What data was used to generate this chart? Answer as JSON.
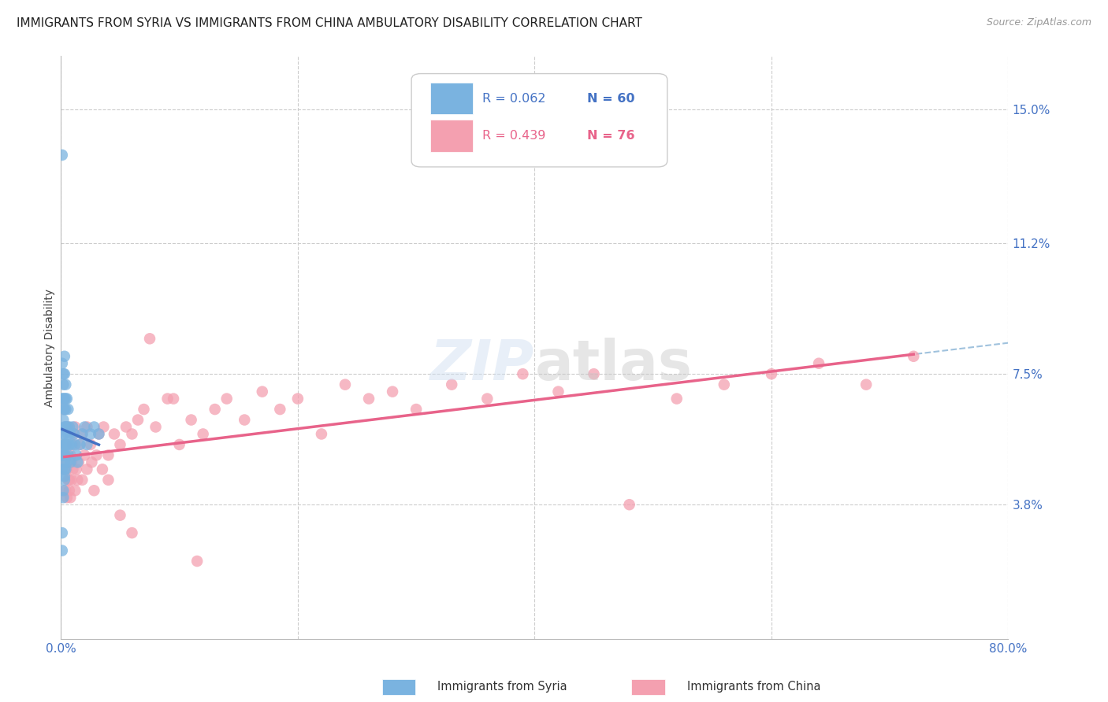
{
  "title": "IMMIGRANTS FROM SYRIA VS IMMIGRANTS FROM CHINA AMBULATORY DISABILITY CORRELATION CHART",
  "source": "Source: ZipAtlas.com",
  "ylabel": "Ambulatory Disability",
  "xlim": [
    0.0,
    0.8
  ],
  "ylim": [
    0.0,
    0.165
  ],
  "ytick_labels_right": [
    "15.0%",
    "11.2%",
    "7.5%",
    "3.8%"
  ],
  "ytick_vals_right": [
    0.15,
    0.112,
    0.075,
    0.038
  ],
  "grid_color": "#cccccc",
  "background_color": "#ffffff",
  "syria_color": "#7ab3e0",
  "china_color": "#f4a0b0",
  "syria_line_color": "#4472c4",
  "china_line_color": "#e8638a",
  "dashed_line_color": "#90b8d8",
  "title_fontsize": 11,
  "label_fontsize": 10,
  "tick_fontsize": 11,
  "legend_R_syria": "R = 0.062",
  "legend_N_syria": "N = 60",
  "legend_R_china": "R = 0.439",
  "legend_N_china": "N = 76",
  "syria_x": [
    0.001,
    0.001,
    0.001,
    0.001,
    0.001,
    0.002,
    0.002,
    0.002,
    0.002,
    0.002,
    0.002,
    0.002,
    0.002,
    0.003,
    0.003,
    0.003,
    0.003,
    0.003,
    0.003,
    0.003,
    0.003,
    0.003,
    0.003,
    0.003,
    0.004,
    0.004,
    0.004,
    0.004,
    0.004,
    0.004,
    0.004,
    0.005,
    0.005,
    0.005,
    0.005,
    0.006,
    0.006,
    0.006,
    0.007,
    0.007,
    0.008,
    0.008,
    0.009,
    0.01,
    0.011,
    0.012,
    0.013,
    0.014,
    0.016,
    0.018,
    0.02,
    0.022,
    0.025,
    0.028,
    0.032,
    0.001,
    0.001,
    0.002,
    0.002,
    0.003
  ],
  "syria_y": [
    0.137,
    0.078,
    0.068,
    0.052,
    0.048,
    0.075,
    0.072,
    0.068,
    0.065,
    0.062,
    0.058,
    0.055,
    0.052,
    0.08,
    0.075,
    0.068,
    0.065,
    0.06,
    0.058,
    0.055,
    0.052,
    0.05,
    0.048,
    0.046,
    0.072,
    0.068,
    0.065,
    0.06,
    0.055,
    0.052,
    0.048,
    0.068,
    0.06,
    0.055,
    0.05,
    0.065,
    0.058,
    0.052,
    0.06,
    0.055,
    0.058,
    0.05,
    0.055,
    0.06,
    0.058,
    0.055,
    0.052,
    0.05,
    0.055,
    0.058,
    0.06,
    0.055,
    0.058,
    0.06,
    0.058,
    0.03,
    0.025,
    0.04,
    0.042,
    0.045
  ],
  "china_x": [
    0.003,
    0.004,
    0.005,
    0.006,
    0.007,
    0.008,
    0.009,
    0.01,
    0.011,
    0.012,
    0.013,
    0.014,
    0.016,
    0.018,
    0.02,
    0.022,
    0.025,
    0.028,
    0.032,
    0.036,
    0.04,
    0.045,
    0.05,
    0.055,
    0.06,
    0.065,
    0.07,
    0.08,
    0.09,
    0.1,
    0.11,
    0.12,
    0.13,
    0.14,
    0.155,
    0.17,
    0.185,
    0.2,
    0.22,
    0.24,
    0.26,
    0.28,
    0.3,
    0.33,
    0.36,
    0.39,
    0.42,
    0.45,
    0.48,
    0.52,
    0.56,
    0.6,
    0.64,
    0.68,
    0.72,
    0.003,
    0.004,
    0.005,
    0.006,
    0.007,
    0.008,
    0.009,
    0.01,
    0.012,
    0.015,
    0.018,
    0.022,
    0.026,
    0.03,
    0.035,
    0.04,
    0.05,
    0.06,
    0.075,
    0.095,
    0.115
  ],
  "china_y": [
    0.05,
    0.055,
    0.048,
    0.06,
    0.045,
    0.052,
    0.05,
    0.055,
    0.058,
    0.06,
    0.048,
    0.045,
    0.055,
    0.058,
    0.052,
    0.06,
    0.055,
    0.042,
    0.058,
    0.06,
    0.045,
    0.058,
    0.055,
    0.06,
    0.058,
    0.062,
    0.065,
    0.06,
    0.068,
    0.055,
    0.062,
    0.058,
    0.065,
    0.068,
    0.062,
    0.07,
    0.065,
    0.068,
    0.058,
    0.072,
    0.068,
    0.07,
    0.065,
    0.072,
    0.068,
    0.075,
    0.07,
    0.075,
    0.038,
    0.068,
    0.072,
    0.075,
    0.078,
    0.072,
    0.08,
    0.048,
    0.042,
    0.04,
    0.045,
    0.042,
    0.04,
    0.045,
    0.048,
    0.042,
    0.05,
    0.045,
    0.048,
    0.05,
    0.052,
    0.048,
    0.052,
    0.035,
    0.03,
    0.085,
    0.068,
    0.022
  ]
}
